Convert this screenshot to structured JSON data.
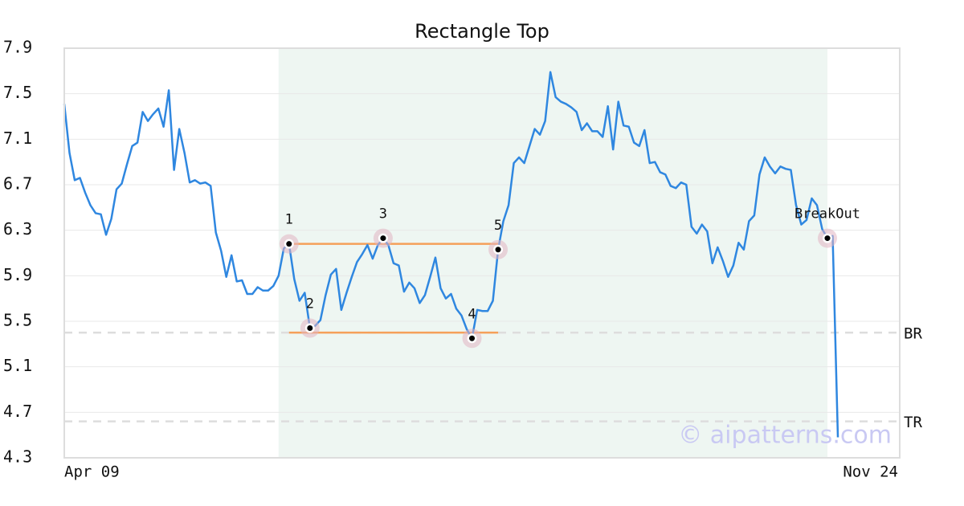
{
  "chart_data": {
    "type": "line",
    "title": "Rectangle Top",
    "categories": [
      "Apr 09",
      null,
      null,
      null,
      null,
      null,
      null,
      null,
      null,
      null,
      null,
      null,
      null,
      null,
      null,
      null,
      null,
      null,
      null,
      null,
      null,
      null,
      null,
      null,
      null,
      null,
      null,
      null,
      null,
      null,
      null,
      null,
      null,
      null,
      null,
      null,
      null,
      null,
      null,
      null,
      null,
      null,
      null,
      null,
      null,
      null,
      null,
      null,
      null,
      null,
      null,
      null,
      null,
      null,
      null,
      null,
      null,
      null,
      null,
      null,
      null,
      null,
      null,
      null,
      null,
      null,
      null,
      null,
      null,
      null,
      null,
      null,
      null,
      null,
      null,
      null,
      null,
      null,
      null,
      null,
      null,
      null,
      null,
      null,
      null,
      null,
      null,
      null,
      null,
      null,
      null,
      null,
      null,
      null,
      null,
      null,
      null,
      null,
      null,
      null,
      null,
      null,
      null,
      null,
      null,
      null,
      null,
      null,
      null,
      null,
      null,
      null,
      null,
      null,
      null,
      null,
      null,
      null,
      null,
      null,
      null,
      null,
      null,
      null,
      null,
      null,
      null,
      null,
      null,
      null,
      null,
      null,
      null,
      null,
      null,
      null,
      null,
      null,
      null,
      null,
      null,
      null,
      null,
      null,
      null,
      null,
      null,
      null,
      "Nov 24"
    ],
    "series": [
      {
        "color": "#2f87e0",
        "values": [
          7.41,
          6.98,
          6.74,
          6.76,
          6.63,
          6.52,
          6.45,
          6.44,
          6.26,
          6.4,
          6.66,
          6.71,
          6.88,
          7.04,
          7.07,
          7.34,
          7.26,
          7.32,
          7.37,
          7.21,
          7.53,
          6.83,
          7.19,
          6.98,
          6.72,
          6.74,
          6.71,
          6.72,
          6.69,
          6.28,
          6.12,
          5.89,
          6.08,
          5.85,
          5.86,
          5.74,
          5.74,
          5.8,
          5.77,
          5.77,
          5.81,
          5.9,
          6.14,
          6.18,
          5.87,
          5.68,
          5.75,
          5.44,
          5.46,
          5.51,
          5.73,
          5.91,
          5.96,
          5.6,
          5.75,
          5.89,
          6.02,
          6.09,
          6.17,
          6.05,
          6.17,
          6.23,
          6.17,
          6.01,
          5.99,
          5.76,
          5.84,
          5.79,
          5.66,
          5.73,
          5.89,
          6.06,
          5.79,
          5.7,
          5.74,
          5.61,
          5.55,
          5.43,
          5.35,
          5.6,
          5.59,
          5.59,
          5.68,
          6.13,
          6.38,
          6.52,
          6.89,
          6.94,
          6.89,
          7.04,
          7.19,
          7.14,
          7.26,
          7.69,
          7.47,
          7.43,
          7.41,
          7.38,
          7.34,
          7.18,
          7.24,
          7.17,
          7.17,
          7.12,
          7.39,
          7.01,
          7.43,
          7.22,
          7.21,
          7.07,
          7.04,
          7.18,
          6.89,
          6.9,
          6.81,
          6.79,
          6.69,
          6.67,
          6.72,
          6.7,
          6.33,
          6.27,
          6.35,
          6.29,
          6.01,
          6.15,
          6.03,
          5.89,
          5.99,
          6.19,
          6.13,
          6.38,
          6.43,
          6.79,
          6.94,
          6.86,
          6.8,
          6.86,
          6.84,
          6.83,
          6.52,
          6.35,
          6.39,
          6.58,
          6.52,
          6.31,
          6.23,
          6.25,
          4.48
        ]
      }
    ],
    "ylim": [
      4.3,
      7.9
    ],
    "yticks": [
      4.3,
      4.7,
      5.1,
      5.5,
      5.9,
      6.3,
      6.7,
      7.1,
      7.5,
      7.9
    ],
    "grid": true,
    "highlight_span": [
      41,
      146
    ],
    "highlight_color": "#eef6f2",
    "rectangle": {
      "top": 6.18,
      "bottom": 5.4,
      "start": 43,
      "end": 83,
      "color": "#f5a05a"
    },
    "pattern_points": [
      {
        "label": "1",
        "index": 43
      },
      {
        "label": "2",
        "index": 47
      },
      {
        "label": "3",
        "index": 61
      },
      {
        "label": "4",
        "index": 78
      },
      {
        "label": "5",
        "index": 83
      },
      {
        "label": "BreakOut",
        "index": 146
      }
    ],
    "reference_lines": [
      {
        "label": "BR",
        "value": 5.4
      },
      {
        "label": "TR",
        "value": 4.62
      }
    ],
    "watermark": "© aipatterns.com"
  }
}
